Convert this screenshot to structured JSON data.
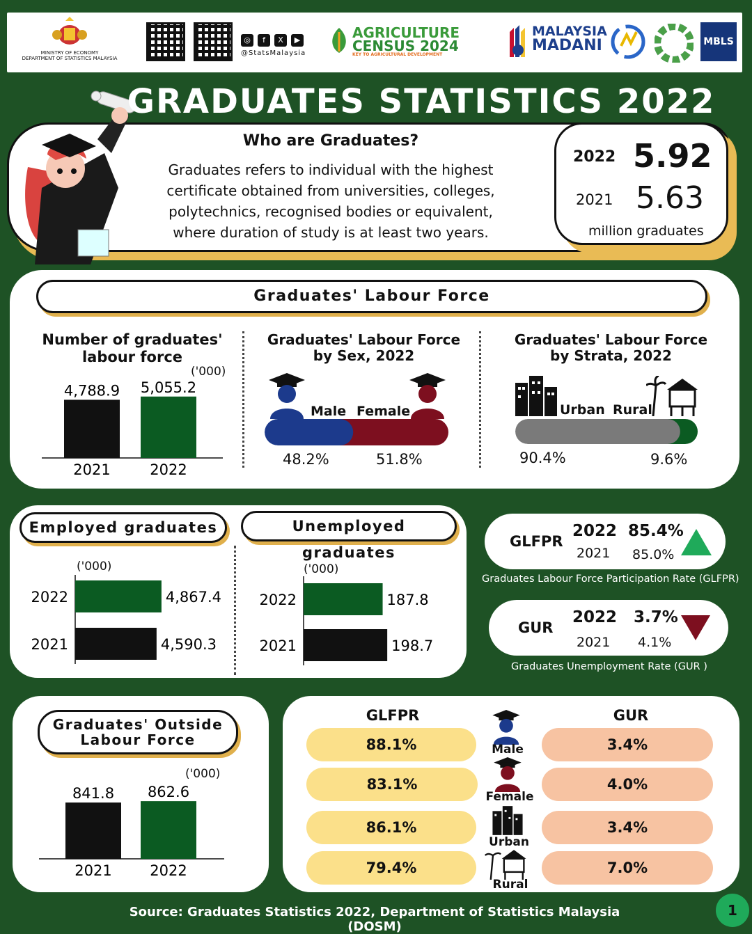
{
  "header": {
    "ministry_line1": "MINISTRY OF ECONOMY",
    "ministry_line2": "DEPARTMENT OF STATISTICS MALAYSIA",
    "social_handle": "@StatsMalaysia",
    "census_line1": "AGRICULTURE",
    "census_line2": "CENSUS 2024",
    "census_tagline": "KEY TO AGRICULTURAL DEVELOPMENT",
    "madani_line1": "MALAYSIA",
    "madani_line2": "MADANI",
    "mbls": "MBLS"
  },
  "title": "GRADUATES STATISTICS 2022",
  "intro": {
    "heading": "Who are Graduates?",
    "line1": "Graduates refers to individual with the highest",
    "line2": "certificate obtained from universities, colleges,",
    "line3": "polytechnics, recognised bodies or equivalent,",
    "line4": "where duration of study is at least two years."
  },
  "totals": {
    "year_2022": "2022",
    "value_2022": "5.92",
    "year_2021": "2021",
    "value_2021": "5.63",
    "unit": "million graduates"
  },
  "labour_force": {
    "section_title": "Graduates' Labour Force",
    "number_title_1": "Number of graduates'",
    "number_title_2": "labour force",
    "unit": "('000)",
    "sex_title_1": "Graduates' Labour Force",
    "sex_title_2": "by Sex, 2022",
    "male_label": "Male",
    "female_label": "Female",
    "male_pct": "48.2%",
    "female_pct": "51.8%",
    "strata_title_1": "Graduates' Labour Force",
    "strata_title_2": "by Strata, 2022",
    "urban_label": "Urban",
    "rural_label": "Rural",
    "urban_pct": "90.4%",
    "rural_pct": "9.6%"
  },
  "employed": {
    "title": "Employed graduates",
    "unit": "('000)"
  },
  "unemployed": {
    "title": "Unemployed graduates",
    "unit": "('000)"
  },
  "glfpr": {
    "abbr": "GLFPR",
    "y2022": "2022",
    "v2022": "85.4%",
    "y2021": "2021",
    "v2021": "85.0%",
    "caption": "Graduates Labour Force Participation Rate (GLFPR)"
  },
  "gur": {
    "abbr": "GUR",
    "y2022": "2022",
    "v2022": "3.7%",
    "y2021": "2021",
    "v2021": "4.1%",
    "caption": "Graduates Unemployment Rate (GUR )"
  },
  "outside": {
    "title_1": "Graduates' Outside",
    "title_2": "Labour Force",
    "unit": "('000)"
  },
  "breakdown": {
    "glfpr_head": "GLFPR",
    "gur_head": "GUR",
    "rows": [
      {
        "label": "Male",
        "glfpr": "88.1%",
        "gur": "3.4%"
      },
      {
        "label": "Female",
        "glfpr": "83.1%",
        "gur": "4.0%"
      },
      {
        "label": "Urban",
        "glfpr": "86.1%",
        "gur": "3.4%"
      },
      {
        "label": "Rural",
        "glfpr": "79.4%",
        "gur": "7.0%"
      }
    ]
  },
  "footer": {
    "source": "Source: Graduates Statistics 2022, Department of Statistics Malaysia (DOSM)",
    "page": "1"
  },
  "colors": {
    "green": "#0b5b22",
    "black": "#111111",
    "male": "#1c3a8c",
    "female": "#7d0f1f",
    "grey": "#7a7a7a",
    "yellow": "#fbe08a",
    "peach": "#f7c3a2",
    "gold": "#e9bb55"
  },
  "chart_data": [
    {
      "type": "bar",
      "title": "Number of graduates' labour force",
      "categories": [
        "2021",
        "2022"
      ],
      "values": [
        4788.9,
        5055.2
      ],
      "labels": [
        "4,788.9",
        "5,055.2"
      ],
      "unit": "('000)",
      "ylim": [
        0,
        5500
      ]
    },
    {
      "type": "bar",
      "orientation": "horizontal",
      "title": "Employed graduates",
      "categories": [
        "2022",
        "2021"
      ],
      "values": [
        4867.4,
        4590.3
      ],
      "labels": [
        "4,867.4",
        "4,590.3"
      ],
      "unit": "('000)",
      "xlim": [
        0,
        5500
      ]
    },
    {
      "type": "bar",
      "orientation": "horizontal",
      "title": "Unemployed graduates",
      "categories": [
        "2022",
        "2021"
      ],
      "values": [
        187.8,
        198.7
      ],
      "labels": [
        "187.8",
        "198.7"
      ],
      "unit": "('000)",
      "xlim": [
        0,
        215
      ]
    },
    {
      "type": "bar",
      "title": "Graduates' Outside Labour Force",
      "categories": [
        "2021",
        "2022"
      ],
      "values": [
        841.8,
        862.6
      ],
      "labels": [
        "841.8",
        "862.6"
      ],
      "unit": "('000)",
      "ylim": [
        0,
        1020
      ]
    },
    {
      "type": "bar",
      "orientation": "horizontal",
      "stacked": true,
      "title": "Graduates' Labour Force by Sex, 2022",
      "series": [
        {
          "name": "Male",
          "values": [
            48.2
          ]
        },
        {
          "name": "Female",
          "values": [
            51.8
          ]
        }
      ]
    },
    {
      "type": "bar",
      "orientation": "horizontal",
      "stacked": true,
      "title": "Graduates' Labour Force by Strata, 2022",
      "series": [
        {
          "name": "Urban",
          "values": [
            90.4
          ]
        },
        {
          "name": "Rural",
          "values": [
            9.6
          ]
        }
      ]
    }
  ]
}
